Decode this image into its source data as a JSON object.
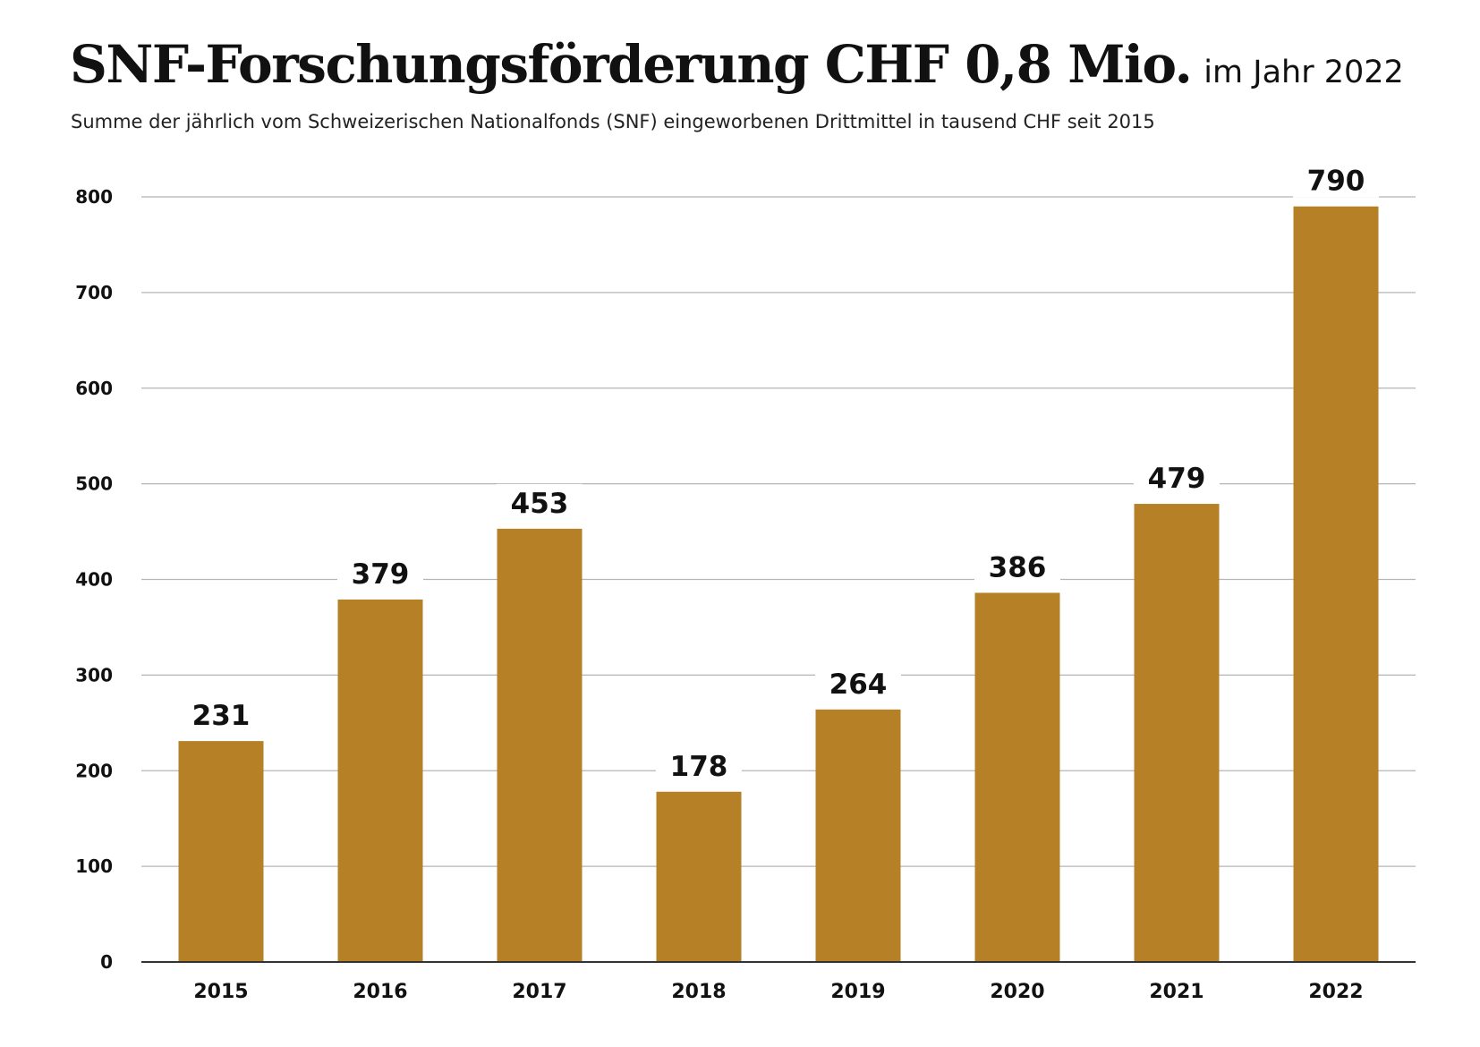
{
  "header": {
    "title": "SNF-Forschungsförderung CHF 0,8 Mio.",
    "title_suffix": "im Jahr 2022",
    "subtitle": "Summe der jährlich vom Schweizerischen Nationalfonds (SNF) eingeworbenen Drittmittel in tausend CHF seit 2015"
  },
  "chart_data": {
    "type": "bar",
    "title": "SNF-Forschungsförderung CHF 0,8 Mio. im Jahr 2022",
    "subtitle": "Summe der jährlich vom Schweizerischen Nationalfonds (SNF) eingeworbenen Drittmittel in tausend CHF seit 2015",
    "categories": [
      "2015",
      "2016",
      "2017",
      "2018",
      "2019",
      "2020",
      "2021",
      "2022"
    ],
    "values": [
      231,
      379,
      453,
      178,
      264,
      386,
      479,
      790
    ],
    "data_labels": [
      "231",
      "379",
      "453",
      "178",
      "264",
      "386",
      "479",
      "790"
    ],
    "xlabel": "",
    "ylabel": "",
    "ylim": [
      0,
      800
    ],
    "yticks": [
      "0",
      "100",
      "200",
      "300",
      "400",
      "500",
      "600",
      "700",
      "800"
    ],
    "grid": "horizontal",
    "legend": "none",
    "bar_color": "#b58026",
    "grid_color": "#b5b5b5",
    "axis_color": "#333333"
  }
}
